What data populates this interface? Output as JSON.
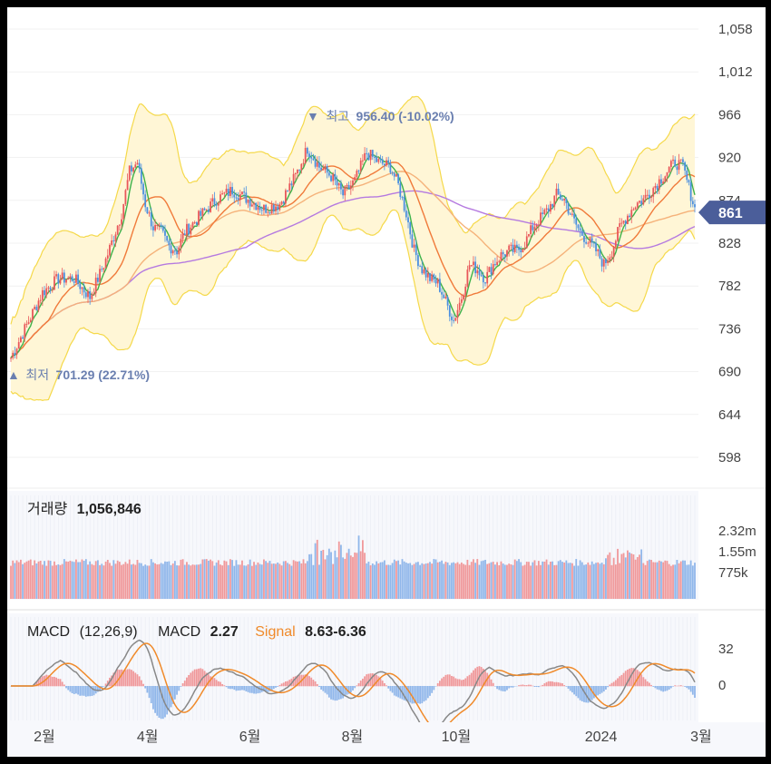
{
  "chart_data": {
    "type": "candlestick",
    "price_panel": {
      "y_ticks": [
        "1,058",
        "1,012",
        "966",
        "920",
        "874",
        "828",
        "782",
        "736",
        "690",
        "644",
        "598"
      ],
      "ylim": [
        598,
        1058
      ],
      "current_price_label": "861",
      "current_price": 861,
      "high_annotation": {
        "label": "최고",
        "value": "956.40 (-10.02%)",
        "marker": "▼",
        "price": 956.4
      },
      "low_annotation": {
        "label": "최저",
        "value": "701.29 (22.71%)",
        "marker": "▲",
        "price": 701.29
      },
      "price_path": [
        [
          0,
          705
        ],
        [
          8,
          740
        ],
        [
          16,
          775
        ],
        [
          24,
          790
        ],
        [
          32,
          790
        ],
        [
          40,
          770
        ],
        [
          48,
          810
        ],
        [
          56,
          860
        ],
        [
          60,
          905
        ],
        [
          64,
          915
        ],
        [
          68,
          870
        ],
        [
          72,
          845
        ],
        [
          76,
          840
        ],
        [
          80,
          825
        ],
        [
          84,
          820
        ],
        [
          88,
          840
        ],
        [
          96,
          858
        ],
        [
          104,
          875
        ],
        [
          112,
          885
        ],
        [
          120,
          875
        ],
        [
          128,
          865
        ],
        [
          136,
          870
        ],
        [
          144,
          900
        ],
        [
          150,
          930
        ],
        [
          156,
          910
        ],
        [
          162,
          900
        ],
        [
          168,
          880
        ],
        [
          174,
          895
        ],
        [
          180,
          925
        ],
        [
          186,
          915
        ],
        [
          192,
          910
        ],
        [
          196,
          890
        ],
        [
          200,
          860
        ],
        [
          204,
          820
        ],
        [
          208,
          800
        ],
        [
          212,
          790
        ],
        [
          216,
          785
        ],
        [
          220,
          765
        ],
        [
          224,
          745
        ],
        [
          228,
          770
        ],
        [
          232,
          805
        ],
        [
          236,
          800
        ],
        [
          240,
          790
        ],
        [
          244,
          805
        ],
        [
          248,
          815
        ],
        [
          252,
          820
        ],
        [
          256,
          820
        ],
        [
          260,
          828
        ],
        [
          264,
          845
        ],
        [
          268,
          855
        ],
        [
          272,
          865
        ],
        [
          276,
          880
        ],
        [
          280,
          875
        ],
        [
          284,
          855
        ],
        [
          288,
          840
        ],
        [
          292,
          830
        ],
        [
          296,
          820
        ],
        [
          300,
          805
        ],
        [
          304,
          820
        ],
        [
          308,
          845
        ],
        [
          312,
          858
        ],
        [
          316,
          870
        ],
        [
          320,
          875
        ],
        [
          324,
          885
        ],
        [
          328,
          895
        ],
        [
          332,
          905
        ],
        [
          336,
          915
        ],
        [
          340,
          910
        ],
        [
          342,
          895
        ],
        [
          344,
          880
        ],
        [
          346,
          865
        ]
      ],
      "volume_label": "거래량",
      "volume_value": "1,056,846"
    },
    "volume_panel": {
      "y_ticks": [
        "2.32m",
        "1.55m",
        "775k"
      ]
    },
    "macd_panel": {
      "label": "MACD",
      "params": "(12,26,9)",
      "macd_label": "MACD",
      "macd_value": "2.27",
      "signal_label": "Signal",
      "signal_value": "8.63-6.36",
      "y_ticks": [
        "32",
        "0"
      ]
    },
    "x_axis": {
      "labels": [
        "2월",
        "4월",
        "6월",
        "8월",
        "10월",
        "2024",
        "3월"
      ],
      "positions": [
        0.049,
        0.185,
        0.32,
        0.455,
        0.592,
        0.783,
        0.915
      ]
    },
    "series_colors": {
      "up": "#e8575a",
      "down": "#4a8fe0",
      "ma5": "#3db24a",
      "ma20": "#f07a3a",
      "ma60": "#f5b27a",
      "ma120": "#b57ae0",
      "band": "#fff6d6",
      "band_edge": "#f5d94a",
      "macd": "#888888",
      "signal": "#f08a2a",
      "accent": "#4b5e9a"
    }
  }
}
